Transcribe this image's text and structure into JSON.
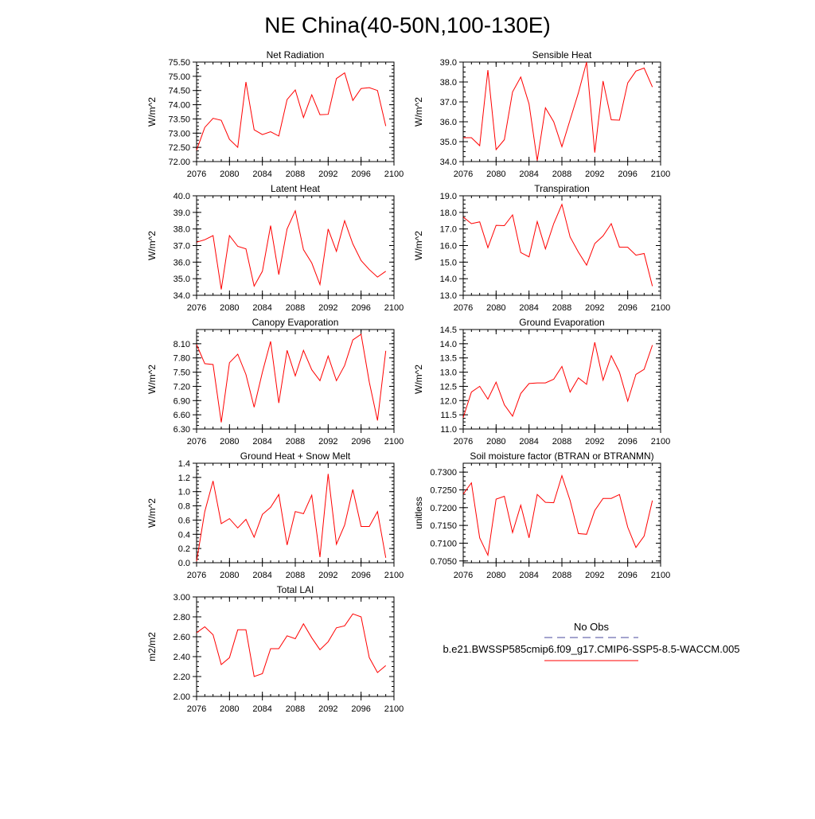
{
  "title": "NE China(40-50N,100-130E)",
  "series_color": "#ff0000",
  "obs_color": "#4a4a9c",
  "legend": {
    "obs_label": "No Obs",
    "model_label": "b.e21.BWSSP585cmip6.f09_g17.CMIP6-SSP5-8.5-WACCM.005"
  },
  "chart_data": [
    {
      "type": "line",
      "title": "Net Radiation",
      "ylabel": "W/m^2",
      "xlim": [
        2076,
        2100
      ],
      "ylim": [
        72.0,
        75.5
      ],
      "xticks": [
        "2076",
        "2080",
        "2084",
        "2088",
        "2092",
        "2096",
        "2100"
      ],
      "yticks": [
        "72.00",
        "72.50",
        "73.00",
        "73.50",
        "74.00",
        "74.50",
        "75.00",
        "75.50"
      ],
      "x": [
        2076,
        2077,
        2078,
        2079,
        2080,
        2081,
        2082,
        2083,
        2084,
        2085,
        2086,
        2087,
        2088,
        2089,
        2090,
        2091,
        2092,
        2093,
        2094,
        2095,
        2096,
        2097,
        2098,
        2099
      ],
      "y": [
        72.4,
        73.2,
        73.52,
        73.45,
        72.78,
        72.5,
        74.8,
        73.12,
        72.95,
        73.05,
        72.9,
        74.18,
        74.52,
        73.55,
        74.35,
        73.65,
        73.66,
        74.92,
        75.12,
        74.15,
        74.57,
        74.6,
        74.5,
        73.25
      ]
    },
    {
      "type": "line",
      "title": "Sensible Heat",
      "ylabel": "W/m^2",
      "xlim": [
        2076,
        2100
      ],
      "ylim": [
        34.0,
        39.0
      ],
      "xticks": [
        "2076",
        "2080",
        "2084",
        "2088",
        "2092",
        "2096",
        "2100"
      ],
      "yticks": [
        "34.0",
        "35.0",
        "36.0",
        "37.0",
        "38.0",
        "39.0"
      ],
      "x": [
        2076,
        2077,
        2078,
        2079,
        2080,
        2081,
        2082,
        2083,
        2084,
        2085,
        2086,
        2087,
        2088,
        2089,
        2090,
        2091,
        2092,
        2093,
        2094,
        2095,
        2096,
        2097,
        2098,
        2099
      ],
      "y": [
        35.2,
        35.2,
        34.8,
        38.6,
        34.6,
        35.1,
        37.5,
        38.25,
        36.9,
        34.05,
        36.7,
        36.0,
        34.75,
        36.1,
        37.45,
        39.0,
        34.45,
        38.05,
        36.1,
        36.08,
        37.95,
        38.55,
        38.7,
        37.75
      ]
    },
    {
      "type": "line",
      "title": "Latent Heat",
      "ylabel": "W/m^2",
      "xlim": [
        2076,
        2100
      ],
      "ylim": [
        34.0,
        40.0
      ],
      "xticks": [
        "2076",
        "2080",
        "2084",
        "2088",
        "2092",
        "2096",
        "2100"
      ],
      "yticks": [
        "34.0",
        "35.0",
        "36.0",
        "37.0",
        "38.0",
        "39.0",
        "40.0"
      ],
      "x": [
        2076,
        2077,
        2078,
        2079,
        2080,
        2081,
        2082,
        2083,
        2084,
        2085,
        2086,
        2087,
        2088,
        2089,
        2090,
        2091,
        2092,
        2093,
        2094,
        2095,
        2096,
        2097,
        2098,
        2099
      ],
      "y": [
        37.2,
        37.35,
        37.6,
        34.35,
        37.6,
        36.95,
        36.8,
        34.55,
        35.45,
        38.2,
        35.25,
        38.0,
        39.1,
        36.75,
        35.95,
        34.65,
        38.0,
        36.65,
        38.5,
        37.1,
        36.1,
        35.55,
        35.1,
        35.45
      ]
    },
    {
      "type": "line",
      "title": "Transpiration",
      "ylabel": "W/m^2",
      "xlim": [
        2076,
        2100
      ],
      "ylim": [
        13.0,
        19.0
      ],
      "xticks": [
        "2076",
        "2080",
        "2084",
        "2088",
        "2092",
        "2096",
        "2100"
      ],
      "yticks": [
        "13.0",
        "14.0",
        "15.0",
        "16.0",
        "17.0",
        "18.0",
        "19.0"
      ],
      "x": [
        2076,
        2077,
        2078,
        2079,
        2080,
        2081,
        2082,
        2083,
        2084,
        2085,
        2086,
        2087,
        2088,
        2089,
        2090,
        2091,
        2092,
        2093,
        2094,
        2095,
        2096,
        2097,
        2098,
        2099
      ],
      "y": [
        17.72,
        17.32,
        17.43,
        15.87,
        17.22,
        17.2,
        17.85,
        15.58,
        15.32,
        17.45,
        15.8,
        17.32,
        18.48,
        16.52,
        15.6,
        14.82,
        16.12,
        16.58,
        17.32,
        15.9,
        15.9,
        15.42,
        15.52,
        13.55
      ]
    },
    {
      "type": "line",
      "title": "Canopy Evaporation",
      "ylabel": "W/m^2",
      "xlim": [
        2076,
        2100
      ],
      "ylim": [
        6.3,
        8.4
      ],
      "xticks": [
        "2076",
        "2080",
        "2084",
        "2088",
        "2092",
        "2096",
        "2100"
      ],
      "yticks": [
        "6.30",
        "6.60",
        "6.90",
        "7.20",
        "7.50",
        "7.80",
        "8.10"
      ],
      "x": [
        2076,
        2077,
        2078,
        2079,
        2080,
        2081,
        2082,
        2083,
        2084,
        2085,
        2086,
        2087,
        2088,
        2089,
        2090,
        2091,
        2092,
        2093,
        2094,
        2095,
        2096,
        2097,
        2098,
        2099
      ],
      "y": [
        8.08,
        7.68,
        7.66,
        6.44,
        7.7,
        7.88,
        7.45,
        6.76,
        7.5,
        8.15,
        6.85,
        7.96,
        7.42,
        7.96,
        7.55,
        7.32,
        7.84,
        7.32,
        7.64,
        8.18,
        8.3,
        7.29,
        6.48,
        7.95
      ]
    },
    {
      "type": "line",
      "title": "Ground Evaporation",
      "ylabel": "W/m^2",
      "xlim": [
        2076,
        2100
      ],
      "ylim": [
        11.0,
        14.5
      ],
      "xticks": [
        "2076",
        "2080",
        "2084",
        "2088",
        "2092",
        "2096",
        "2100"
      ],
      "yticks": [
        "11.0",
        "11.5",
        "12.0",
        "12.5",
        "13.0",
        "13.5",
        "14.0",
        "14.5"
      ],
      "x": [
        2076,
        2077,
        2078,
        2079,
        2080,
        2081,
        2082,
        2083,
        2084,
        2085,
        2086,
        2087,
        2088,
        2089,
        2090,
        2091,
        2092,
        2093,
        2094,
        2095,
        2096,
        2097,
        2098,
        2099
      ],
      "y": [
        11.4,
        12.3,
        12.5,
        12.05,
        12.65,
        11.85,
        11.45,
        12.25,
        12.6,
        12.62,
        12.62,
        12.75,
        13.2,
        12.3,
        12.8,
        12.57,
        14.05,
        12.72,
        13.58,
        13.0,
        11.98,
        12.92,
        13.1,
        13.95
      ]
    },
    {
      "type": "line",
      "title": "Ground Heat + Snow Melt",
      "ylabel": "W/m^2",
      "xlim": [
        2076,
        2100
      ],
      "ylim": [
        0.0,
        1.4
      ],
      "xticks": [
        "2076",
        "2080",
        "2084",
        "2088",
        "2092",
        "2096",
        "2100"
      ],
      "yticks": [
        "0.0",
        "0.2",
        "0.4",
        "0.6",
        "0.8",
        "1.0",
        "1.2",
        "1.4"
      ],
      "x": [
        2076,
        2077,
        2078,
        2079,
        2080,
        2081,
        2082,
        2083,
        2084,
        2085,
        2086,
        2087,
        2088,
        2089,
        2090,
        2091,
        2092,
        2093,
        2094,
        2095,
        2096,
        2097,
        2098,
        2099
      ],
      "y": [
        0.02,
        0.72,
        1.15,
        0.55,
        0.62,
        0.49,
        0.61,
        0.36,
        0.68,
        0.78,
        0.96,
        0.25,
        0.72,
        0.69,
        0.95,
        0.08,
        1.25,
        0.26,
        0.53,
        1.03,
        0.51,
        0.51,
        0.72,
        0.07
      ]
    },
    {
      "type": "line",
      "title": "Soil moisture factor (BTRAN or BTRANMN)",
      "ylabel": "unitless",
      "xlim": [
        2076,
        2100
      ],
      "ylim": [
        0.7045,
        0.7325
      ],
      "xticks": [
        "2076",
        "2080",
        "2084",
        "2088",
        "2092",
        "2096",
        "2100"
      ],
      "yticks": [
        "0.7050",
        "0.7100",
        "0.7150",
        "0.7200",
        "0.7250",
        "0.7300"
      ],
      "x": [
        2076,
        2077,
        2078,
        2079,
        2080,
        2081,
        2082,
        2083,
        2084,
        2085,
        2086,
        2087,
        2088,
        2089,
        2090,
        2091,
        2092,
        2093,
        2094,
        2095,
        2096,
        2097,
        2098,
        2099
      ],
      "y": [
        0.7238,
        0.727,
        0.7115,
        0.7066,
        0.7224,
        0.7232,
        0.713,
        0.7207,
        0.7115,
        0.7237,
        0.7215,
        0.7214,
        0.729,
        0.722,
        0.7127,
        0.7125,
        0.7192,
        0.7226,
        0.7226,
        0.7237,
        0.7145,
        0.7088,
        0.712,
        0.722
      ]
    },
    {
      "type": "line",
      "title": "Total LAI",
      "ylabel": "m2/m2",
      "xlim": [
        2076,
        2100
      ],
      "ylim": [
        2.0,
        3.0
      ],
      "xticks": [
        "2076",
        "2080",
        "2084",
        "2088",
        "2092",
        "2096",
        "2100"
      ],
      "yticks": [
        "2.00",
        "2.20",
        "2.40",
        "2.60",
        "2.80",
        "3.00"
      ],
      "x": [
        2076,
        2077,
        2078,
        2079,
        2080,
        2081,
        2082,
        2083,
        2084,
        2085,
        2086,
        2087,
        2088,
        2089,
        2090,
        2091,
        2092,
        2093,
        2094,
        2095,
        2096,
        2097,
        2098,
        2099
      ],
      "y": [
        2.64,
        2.7,
        2.62,
        2.32,
        2.39,
        2.67,
        2.67,
        2.2,
        2.23,
        2.48,
        2.48,
        2.61,
        2.58,
        2.73,
        2.59,
        2.47,
        2.55,
        2.69,
        2.71,
        2.83,
        2.8,
        2.39,
        2.24,
        2.31
      ]
    }
  ]
}
